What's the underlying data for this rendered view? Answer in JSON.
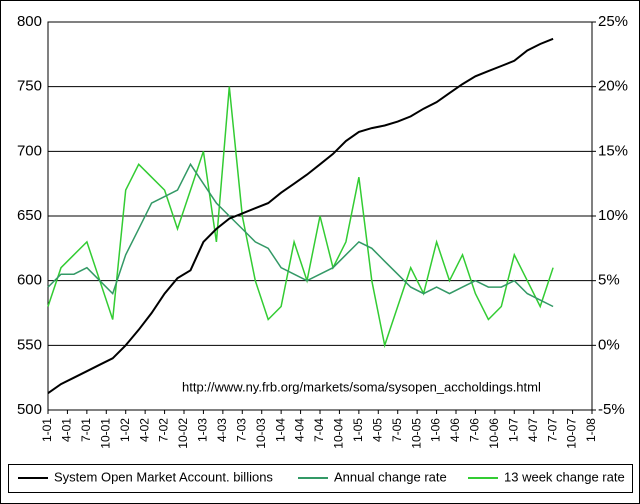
{
  "chart_data": {
    "type": "line",
    "annotation": "http://www.ny.frb.org/markets/soma/sysopen_accholdings.html",
    "x": [
      2001,
      2001.167,
      2001.333,
      2001.5,
      2001.667,
      2001.833,
      2002,
      2002.167,
      2002.333,
      2002.5,
      2002.667,
      2002.833,
      2003,
      2003.167,
      2003.333,
      2003.5,
      2003.667,
      2003.833,
      2004,
      2004.167,
      2004.333,
      2004.5,
      2004.667,
      2004.833,
      2005,
      2005.167,
      2005.333,
      2005.5,
      2005.667,
      2005.833,
      2006,
      2006.167,
      2006.333,
      2006.5,
      2006.667,
      2006.833,
      2007,
      2007.167,
      2007.333,
      2007.5
    ],
    "xlim": [
      2001,
      2008
    ],
    "xticks": [
      {
        "value": 2001,
        "label": "1-01"
      },
      {
        "value": 2001.25,
        "label": "4-01"
      },
      {
        "value": 2001.5,
        "label": "7-01"
      },
      {
        "value": 2001.75,
        "label": "10-01"
      },
      {
        "value": 2002,
        "label": "1-02"
      },
      {
        "value": 2002.25,
        "label": "4-02"
      },
      {
        "value": 2002.5,
        "label": "7-02"
      },
      {
        "value": 2002.75,
        "label": "10-02"
      },
      {
        "value": 2003,
        "label": "1-03"
      },
      {
        "value": 2003.25,
        "label": "4-03"
      },
      {
        "value": 2003.5,
        "label": "7-03"
      },
      {
        "value": 2003.75,
        "label": "10-03"
      },
      {
        "value": 2004,
        "label": "1-04"
      },
      {
        "value": 2004.25,
        "label": "4-04"
      },
      {
        "value": 2004.5,
        "label": "7-04"
      },
      {
        "value": 2004.75,
        "label": "10-04"
      },
      {
        "value": 2005,
        "label": "1-05"
      },
      {
        "value": 2005.25,
        "label": "4-05"
      },
      {
        "value": 2005.5,
        "label": "7-05"
      },
      {
        "value": 2005.75,
        "label": "10-05"
      },
      {
        "value": 2006,
        "label": "1-06"
      },
      {
        "value": 2006.25,
        "label": "4-06"
      },
      {
        "value": 2006.5,
        "label": "7-06"
      },
      {
        "value": 2006.75,
        "label": "10-06"
      },
      {
        "value": 2007,
        "label": "1-07"
      },
      {
        "value": 2007.25,
        "label": "4-07"
      },
      {
        "value": 2007.5,
        "label": "7-07"
      },
      {
        "value": 2007.75,
        "label": "10-07"
      },
      {
        "value": 2008,
        "label": "1-08"
      }
    ],
    "ylim": [
      500,
      800
    ],
    "yticks": [
      500,
      550,
      600,
      650,
      700,
      750,
      800
    ],
    "y2lim": [
      -5,
      25
    ],
    "y2ticks": [
      {
        "value": -5,
        "label": "-5%"
      },
      {
        "value": 0,
        "label": "0%"
      },
      {
        "value": 5,
        "label": "5%"
      },
      {
        "value": 10,
        "label": "10%"
      },
      {
        "value": 15,
        "label": "15%"
      },
      {
        "value": 20,
        "label": "20%"
      },
      {
        "value": 25,
        "label": "25%"
      }
    ],
    "grid": true,
    "legend": "bottom",
    "series": [
      {
        "name": "System Open Market Account. billions",
        "color": "#000000",
        "values": [
          513,
          520,
          525,
          530,
          535,
          540,
          550,
          562,
          575,
          590,
          602,
          608,
          630,
          640,
          648,
          652,
          656,
          660,
          668,
          675,
          682,
          690,
          698,
          708,
          715,
          718,
          720,
          723,
          727,
          733,
          738,
          745,
          752,
          758,
          762,
          766,
          770,
          778,
          783,
          787
        ]
      },
      {
        "name": "Annual change rate",
        "color": "#339966",
        "axis": "y2",
        "values": [
          4.5,
          5.5,
          5.5,
          6,
          5,
          4,
          7,
          9,
          11,
          11.5,
          12,
          14,
          12.5,
          11,
          10,
          9,
          8,
          7.5,
          6,
          5.5,
          5,
          5.5,
          6,
          7,
          8,
          7.5,
          6.5,
          5.5,
          4.5,
          4,
          4.5,
          4,
          4.5,
          5,
          4.5,
          4.5,
          5,
          4,
          3.5,
          3
        ]
      },
      {
        "name": "13 week change rate",
        "color": "#33cc33",
        "axis": "y2",
        "values": [
          3,
          6,
          7,
          8,
          5,
          2,
          12,
          14,
          13,
          12,
          9,
          12,
          15,
          8,
          20,
          10,
          5,
          2,
          3,
          8,
          5,
          10,
          6,
          8,
          13,
          5,
          0,
          3,
          6,
          4,
          8,
          5,
          7,
          4,
          2,
          3,
          7,
          5,
          3,
          6
        ]
      }
    ]
  }
}
